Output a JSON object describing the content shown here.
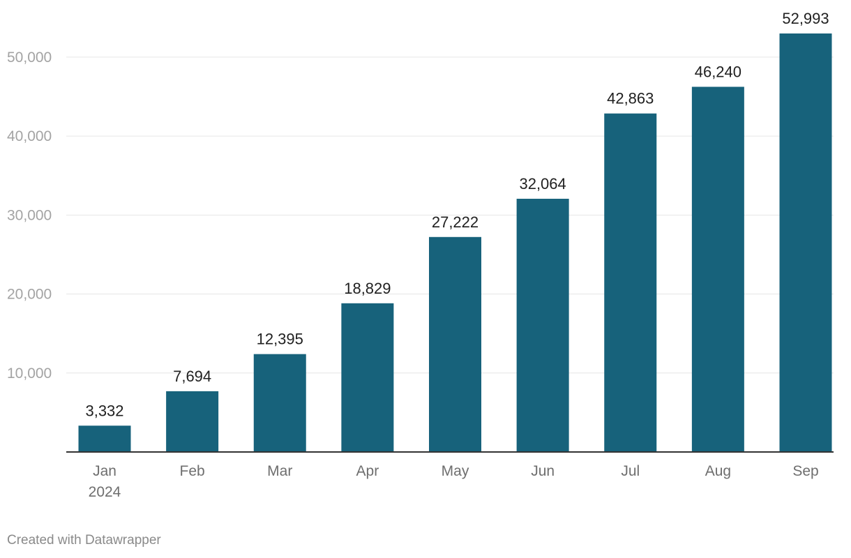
{
  "chart_data": {
    "type": "bar",
    "categories": [
      "Jan",
      "Feb",
      "Mar",
      "Apr",
      "May",
      "Jun",
      "Jul",
      "Aug",
      "Sep"
    ],
    "category_sublabels": [
      "2024",
      "",
      "",
      "",
      "",
      "",
      "",
      "",
      ""
    ],
    "values": [
      3332,
      7694,
      12395,
      18829,
      27222,
      32064,
      42863,
      46240,
      52993
    ],
    "value_labels": [
      "3,332",
      "7,694",
      "12,395",
      "18,829",
      "27,222",
      "32,064",
      "42,863",
      "46,240",
      "52,993"
    ],
    "yticks": [
      10000,
      20000,
      30000,
      40000,
      50000
    ],
    "ytick_labels": [
      "10,000",
      "20,000",
      "30,000",
      "40,000",
      "50,000"
    ],
    "ylim": [
      0,
      52993
    ],
    "grid": true,
    "bar_color": "#17627b",
    "title": "",
    "xlabel": "",
    "ylabel": ""
  },
  "footer": {
    "credit": "Created with Datawrapper"
  }
}
